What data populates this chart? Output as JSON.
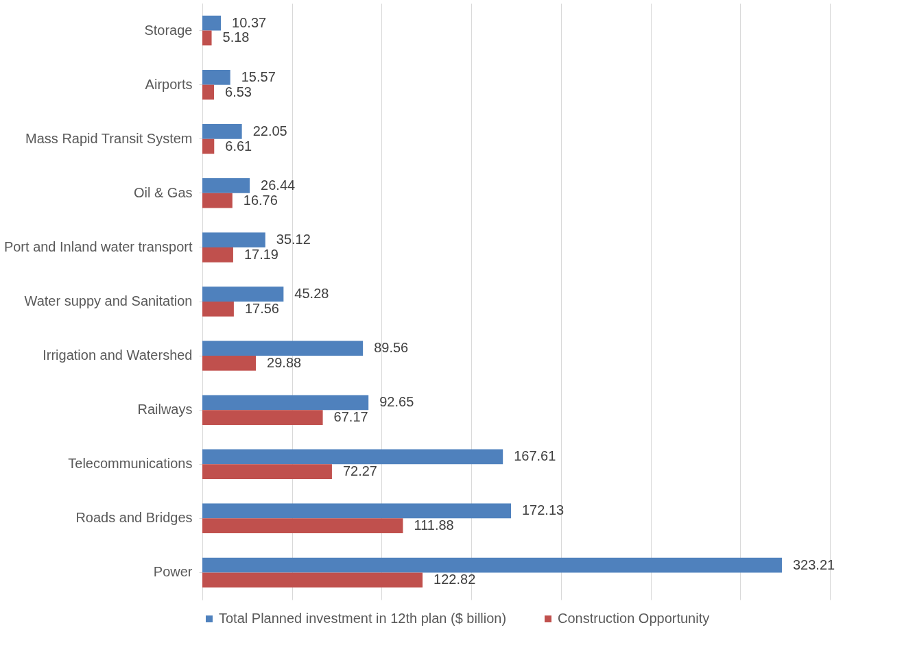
{
  "chart_data": {
    "type": "bar",
    "orientation": "horizontal",
    "categories": [
      "Storage",
      "Airports",
      "Mass Rapid Transit System",
      "Oil & Gas",
      "Port and Inland water transport",
      "Water suppy and Sanitation",
      "Irrigation and Watershed",
      "Railways",
      "Telecommunications",
      "Roads and Bridges",
      "Power"
    ],
    "series": [
      {
        "name": "Total Planned investment in 12th plan ($ billion)",
        "color": "#4f81bd",
        "values": [
          10.37,
          15.57,
          22.05,
          26.44,
          35.12,
          45.28,
          89.56,
          92.65,
          167.61,
          172.13,
          323.21
        ]
      },
      {
        "name": "Construction Opportunity",
        "color": "#c0504d",
        "values": [
          5.18,
          6.53,
          6.61,
          16.76,
          17.19,
          17.56,
          29.88,
          67.17,
          72.27,
          111.88,
          122.82
        ]
      }
    ],
    "xlim": [
      0,
      350
    ],
    "xticks": [
      {
        "value": 0,
        "label": null
      },
      {
        "value": 50,
        "label": null
      },
      {
        "value": 100,
        "label": null
      },
      {
        "value": 150,
        "label": null
      },
      {
        "value": 200,
        "label": null
      },
      {
        "value": 250,
        "label": null
      },
      {
        "value": 300,
        "label": null
      },
      {
        "value": 350,
        "label": null
      }
    ],
    "tick_labels": "y",
    "grid": "x",
    "legend": "bottom",
    "data_labels": true
  }
}
